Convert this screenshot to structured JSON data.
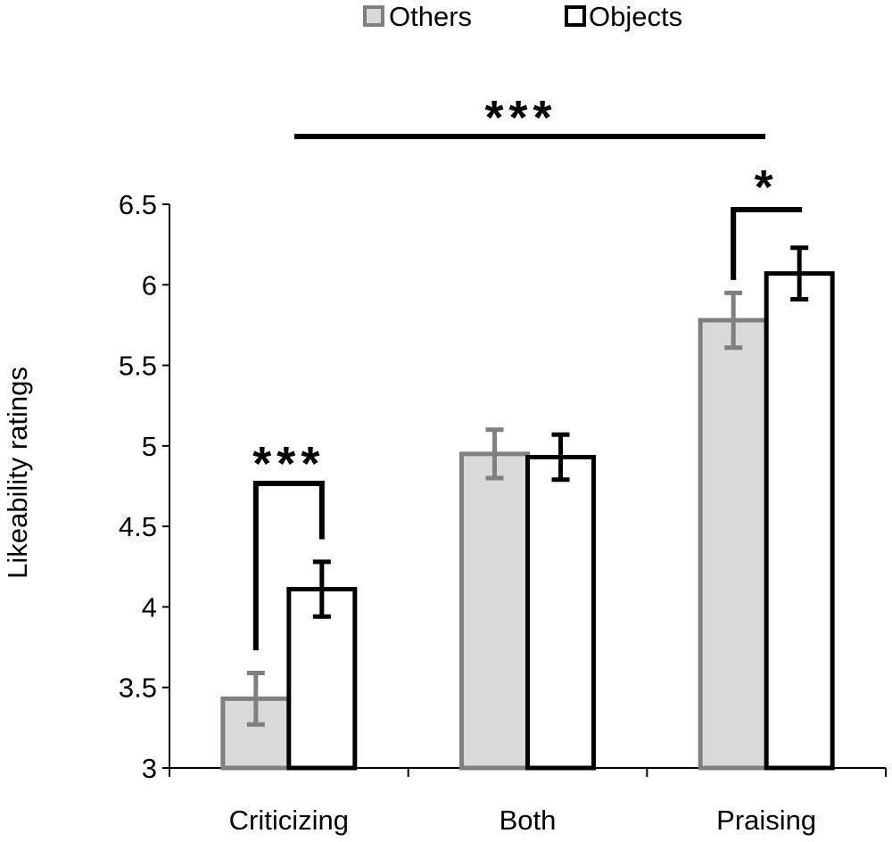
{
  "chart_data": {
    "type": "bar",
    "title": "",
    "xlabel": "",
    "ylabel": "Likeability ratings",
    "ylim": [
      3,
      6.5
    ],
    "yticks": [
      "3",
      "3.5",
      "4",
      "4.5",
      "5",
      "5.5",
      "6",
      "6.5"
    ],
    "ytick_values": [
      3,
      3.5,
      4,
      4.5,
      5,
      5.5,
      6,
      6.5
    ],
    "categories": [
      "Criticizing",
      "Both",
      "Praising"
    ],
    "series": [
      {
        "name": "Others",
        "values": [
          3.43,
          4.95,
          5.78
        ],
        "errors": [
          0.16,
          0.15,
          0.17
        ],
        "fill": "#d9d9d9",
        "stroke": "#808080"
      },
      {
        "name": "Objects",
        "values": [
          4.11,
          4.93,
          6.07
        ],
        "errors": [
          0.17,
          0.14,
          0.16
        ],
        "fill": "#ffffff",
        "stroke": "#000000"
      }
    ],
    "legend": {
      "position": "top",
      "entries": [
        "Others",
        "Objects"
      ]
    },
    "grid": false,
    "annotations": {
      "overall": "***",
      "criticizing": "***",
      "praising": "*"
    }
  }
}
